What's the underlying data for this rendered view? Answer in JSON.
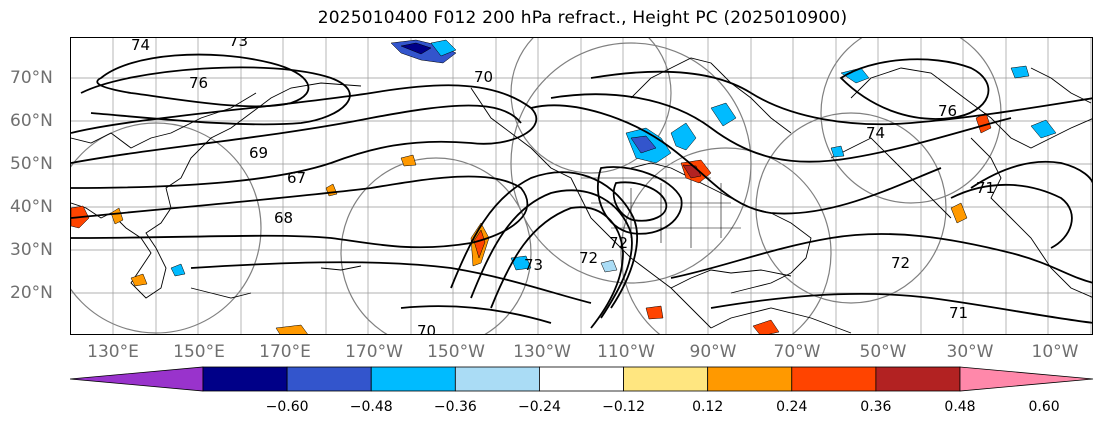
{
  "title": "2025010400 F012 200 hPa refract., Height PC (2025010900)",
  "lat_labels": [
    "70°N",
    "60°N",
    "50°N",
    "40°N",
    "30°N",
    "20°N"
  ],
  "lon_labels": [
    "130°E",
    "150°E",
    "170°E",
    "170°W",
    "150°W",
    "130°W",
    "110°W",
    "90°W",
    "70°W",
    "50°W",
    "30°W",
    "10°W"
  ],
  "contour_labels": [
    "74",
    "73",
    "76",
    "70",
    "69",
    "67",
    "68",
    "73",
    "72",
    "72",
    "76",
    "74",
    "71",
    "71",
    "70",
    "72"
  ],
  "colorbar": {
    "colors": [
      "#9933cc",
      "#000088",
      "#3355cc",
      "#00bbff",
      "#aadcf5",
      "#ffffff",
      "#ffe680",
      "#ff9900",
      "#ff4400",
      "#b22222",
      "#ff88aa"
    ],
    "tick_labels": [
      "−0.60",
      "−0.48",
      "−0.36",
      "−0.24",
      "−0.12",
      "0.12",
      "0.24",
      "0.36",
      "0.48",
      "0.60"
    ]
  }
}
